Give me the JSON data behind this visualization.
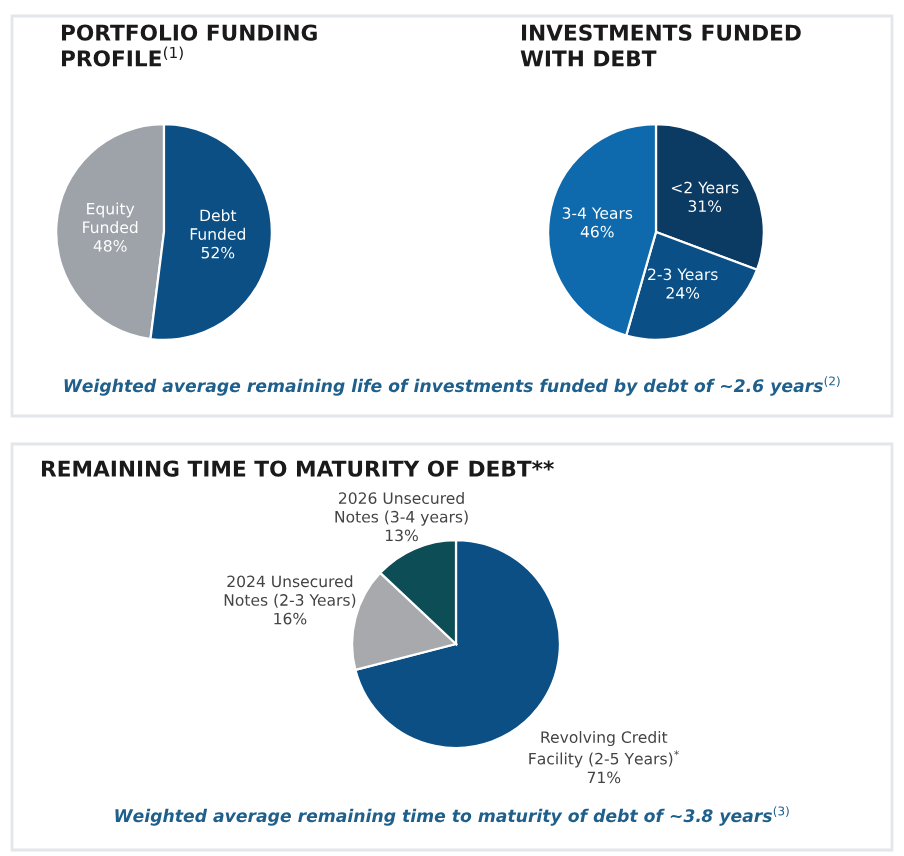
{
  "chart_data": [
    {
      "type": "pie",
      "title": "PORTFOLIO FUNDING\nPROFILE$^{(1)}$",
      "categories": [
        "Equity\nFunded",
        "Debt\nFunded"
      ],
      "values": [
        48,
        52
      ],
      "value_labels": [
        "48%",
        "52%"
      ],
      "colors": [
        "#9ea3aa",
        "#0b4f85"
      ],
      "annotations": [
        "Weighted average remaining life of investments funded by debt of ~2.6 years$^{(2)}$"
      ]
    },
    {
      "type": "pie",
      "title": "INVESTMENTS FUNDED\nWITH DEBT",
      "categories": [
        "<2 Years",
        "2-3 Years",
        "3-4 Years"
      ],
      "values": [
        31,
        24,
        46
      ],
      "value_labels": [
        "31%",
        "24%",
        "46%"
      ],
      "colors": [
        "#0b3a63",
        "#0a4f86",
        "#0f6aad"
      ]
    },
    {
      "type": "pie",
      "title": "REMAINING TIME TO MATURITY OF DEBT**",
      "categories": [
        "Revolving Credit\nFacility (2-5 Years)$^{*}$",
        "2024 Unsecured\nNotes (2-3 Years)",
        "2026 Unsecured\nNotes (3-4 years)"
      ],
      "values": [
        71,
        16,
        13
      ],
      "value_labels": [
        "71%",
        "16%",
        "13%"
      ],
      "colors": [
        "#0b4f85",
        "#a7a9ac",
        "#0d4d55"
      ],
      "annotations": [
        "Weighted average remaining time to maturity of debt of ~3.8 years$^{(3)}$"
      ]
    }
  ]
}
